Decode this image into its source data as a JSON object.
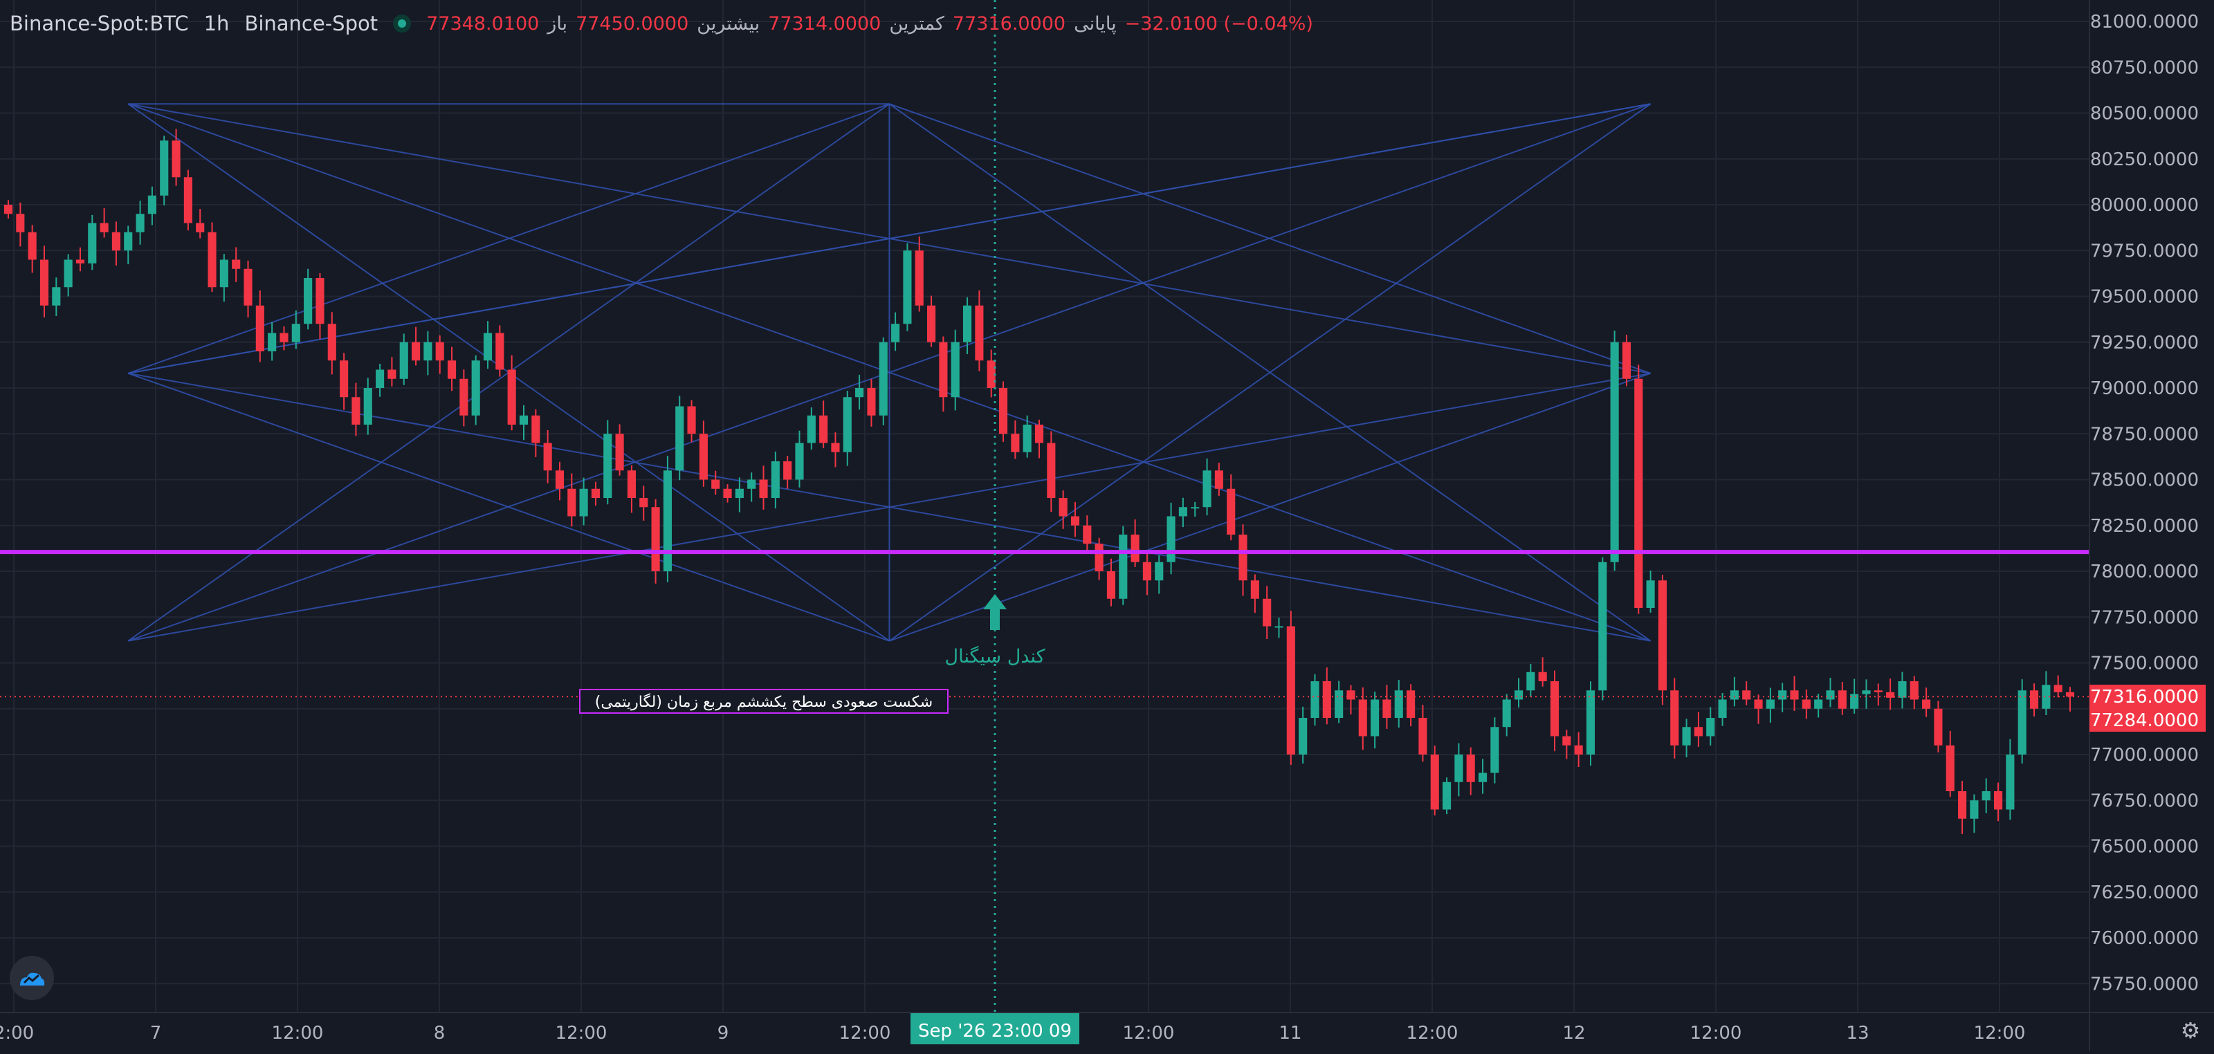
{
  "header": {
    "symbol": "Binance-Spot:BTC",
    "interval": "1h",
    "exchange": "Binance-Spot",
    "status_icon": "live-status-dot",
    "open_label": "باز",
    "open": "77348.0100",
    "high_label": "بیشترین",
    "high": "77450.0000",
    "low_label": "کمترین",
    "low": "77314.0000",
    "close_label": "پایانی",
    "close": "77316.0000",
    "change": "−32.0100 (−0.04%)"
  },
  "colors": {
    "background": "#161a25",
    "grid": "#232734",
    "up": "#22ab94",
    "down": "#f23645",
    "pattern_lines": "#2f4ea8",
    "level_line": "#c82bff",
    "crosshair": "#26a69a",
    "signal": "#22ab94"
  },
  "chart_data": {
    "type": "candlestick",
    "y_ticks": [
      "81000.0000",
      "80750.0000",
      "80500.0000",
      "80250.0000",
      "80000.0000",
      "79750.0000",
      "79500.0000",
      "79250.0000",
      "79000.0000",
      "78750.0000",
      "78500.0000",
      "78250.0000",
      "78000.0000",
      "77750.0000",
      "77500.0000",
      "77250.0000",
      "77000.0000",
      "76750.0000",
      "76500.0000",
      "76250.0000",
      "76000.0000",
      "75750.0000"
    ],
    "ylim": [
      75650,
      81100
    ],
    "x_ticks": [
      "2:00",
      "7",
      "12:00",
      "8",
      "12:00",
      "9",
      "12:00",
      "12:00",
      "11",
      "12:00",
      "12",
      "12:00",
      "13",
      "12:00"
    ],
    "crosshair_time_label": "Sep '26   23:00 09",
    "price_labels": [
      "77316.0000",
      "77284.0000"
    ],
    "current_price": 77316,
    "level_price": 78105,
    "signal_label": "کندل سیگنال",
    "signal_price": 77770,
    "annotation": "شکست صعودی سطح یکششم مربع زمان (لگاریتمی)",
    "candles": [
      [
        80000,
        79950
      ],
      [
        79950,
        79850
      ],
      [
        79850,
        79700
      ],
      [
        79700,
        79450
      ],
      [
        79450,
        79550
      ],
      [
        79550,
        79700
      ],
      [
        79700,
        79680
      ],
      [
        79680,
        79900
      ],
      [
        79900,
        79850
      ],
      [
        79850,
        79750
      ],
      [
        79750,
        79850
      ],
      [
        79850,
        79950
      ],
      [
        79950,
        80050
      ],
      [
        80050,
        80350
      ],
      [
        80350,
        80150
      ],
      [
        80150,
        79900
      ],
      [
        79900,
        79850
      ],
      [
        79850,
        79550
      ],
      [
        79550,
        79700
      ],
      [
        79700,
        79650
      ],
      [
        79650,
        79450
      ],
      [
        79450,
        79200
      ],
      [
        79200,
        79300
      ],
      [
        79300,
        79250
      ],
      [
        79250,
        79350
      ],
      [
        79350,
        79600
      ],
      [
        79600,
        79350
      ],
      [
        79350,
        79150
      ],
      [
        79150,
        78950
      ],
      [
        78950,
        78800
      ],
      [
        78800,
        79000
      ],
      [
        79000,
        79100
      ],
      [
        79100,
        79050
      ],
      [
        79050,
        79250
      ],
      [
        79250,
        79150
      ],
      [
        79150,
        79250
      ],
      [
        79250,
        79150
      ],
      [
        79150,
        79050
      ],
      [
        79050,
        78850
      ],
      [
        78850,
        79150
      ],
      [
        79150,
        79300
      ],
      [
        79300,
        79100
      ],
      [
        79100,
        78800
      ],
      [
        78800,
        78850
      ],
      [
        78850,
        78700
      ],
      [
        78700,
        78550
      ],
      [
        78550,
        78450
      ],
      [
        78450,
        78300
      ],
      [
        78300,
        78450
      ],
      [
        78450,
        78400
      ],
      [
        78400,
        78750
      ],
      [
        78750,
        78550
      ],
      [
        78550,
        78400
      ],
      [
        78400,
        78350
      ],
      [
        78350,
        78000
      ],
      [
        78000,
        78550
      ],
      [
        78550,
        78900
      ],
      [
        78900,
        78750
      ],
      [
        78750,
        78500
      ],
      [
        78500,
        78450
      ],
      [
        78450,
        78400
      ],
      [
        78400,
        78450
      ],
      [
        78450,
        78500
      ],
      [
        78500,
        78400
      ],
      [
        78400,
        78600
      ],
      [
        78600,
        78500
      ],
      [
        78500,
        78700
      ],
      [
        78700,
        78850
      ],
      [
        78850,
        78700
      ],
      [
        78700,
        78650
      ],
      [
        78650,
        78950
      ],
      [
        78950,
        79000
      ],
      [
        79000,
        78850
      ],
      [
        78850,
        79250
      ],
      [
        79250,
        79350
      ],
      [
        79350,
        79750
      ],
      [
        79750,
        79450
      ],
      [
        79450,
        79250
      ],
      [
        79250,
        78950
      ],
      [
        78950,
        79250
      ],
      [
        79250,
        79450
      ],
      [
        79450,
        79150
      ],
      [
        79150,
        79000
      ],
      [
        79000,
        78750
      ],
      [
        78750,
        78650
      ],
      [
        78650,
        78800
      ],
      [
        78800,
        78700
      ],
      [
        78700,
        78400
      ],
      [
        78400,
        78300
      ],
      [
        78300,
        78250
      ],
      [
        78250,
        78150
      ],
      [
        78150,
        78000
      ],
      [
        78000,
        77850
      ],
      [
        77850,
        78200
      ],
      [
        78200,
        78050
      ],
      [
        78050,
        77950
      ],
      [
        77950,
        78050
      ],
      [
        78050,
        78300
      ],
      [
        78300,
        78350
      ],
      [
        78350,
        78350
      ],
      [
        78350,
        78550
      ],
      [
        78550,
        78450
      ],
      [
        78450,
        78200
      ],
      [
        78200,
        77950
      ],
      [
        77950,
        77850
      ],
      [
        77850,
        77700
      ],
      [
        77700,
        77700
      ],
      [
        77700,
        77000
      ],
      [
        77000,
        77200
      ],
      [
        77200,
        77400
      ],
      [
        77400,
        77200
      ],
      [
        77200,
        77350
      ],
      [
        77350,
        77300
      ],
      [
        77300,
        77100
      ],
      [
        77100,
        77300
      ],
      [
        77300,
        77200
      ],
      [
        77200,
        77350
      ],
      [
        77350,
        77200
      ],
      [
        77200,
        77000
      ],
      [
        77000,
        76700
      ],
      [
        76700,
        76850
      ],
      [
        76850,
        77000
      ],
      [
        77000,
        76850
      ],
      [
        76850,
        76900
      ],
      [
        76900,
        77150
      ],
      [
        77150,
        77300
      ],
      [
        77300,
        77350
      ],
      [
        77350,
        77450
      ],
      [
        77450,
        77400
      ],
      [
        77400,
        77100
      ],
      [
        77100,
        77050
      ],
      [
        77050,
        77000
      ],
      [
        77000,
        77350
      ],
      [
        77350,
        78050
      ],
      [
        78050,
        79250
      ],
      [
        79250,
        79050
      ],
      [
        79050,
        77800
      ],
      [
        77800,
        77950
      ],
      [
        77950,
        77350
      ],
      [
        77350,
        77050
      ],
      [
        77050,
        77150
      ],
      [
        77150,
        77100
      ],
      [
        77100,
        77200
      ],
      [
        77200,
        77300
      ],
      [
        77300,
        77350
      ],
      [
        77350,
        77300
      ],
      [
        77300,
        77250
      ],
      [
        77250,
        77300
      ],
      [
        77300,
        77350
      ],
      [
        77350,
        77300
      ],
      [
        77300,
        77250
      ],
      [
        77250,
        77300
      ],
      [
        77300,
        77350
      ],
      [
        77350,
        77250
      ],
      [
        77250,
        77330
      ],
      [
        77330,
        77350
      ],
      [
        77350,
        77340
      ],
      [
        77340,
        77310
      ],
      [
        77310,
        77400
      ],
      [
        77400,
        77300
      ],
      [
        77300,
        77250
      ],
      [
        77250,
        77050
      ],
      [
        77050,
        76800
      ],
      [
        76800,
        76650
      ],
      [
        76650,
        76750
      ],
      [
        76750,
        76800
      ],
      [
        76800,
        76700
      ],
      [
        76700,
        77000
      ],
      [
        77000,
        77350
      ],
      [
        77350,
        77250
      ],
      [
        77250,
        77380
      ],
      [
        77380,
        77340
      ],
      [
        77340,
        77316
      ]
    ]
  },
  "brand_icon": "brand-logo-icon",
  "settings_icon": "gear-icon"
}
